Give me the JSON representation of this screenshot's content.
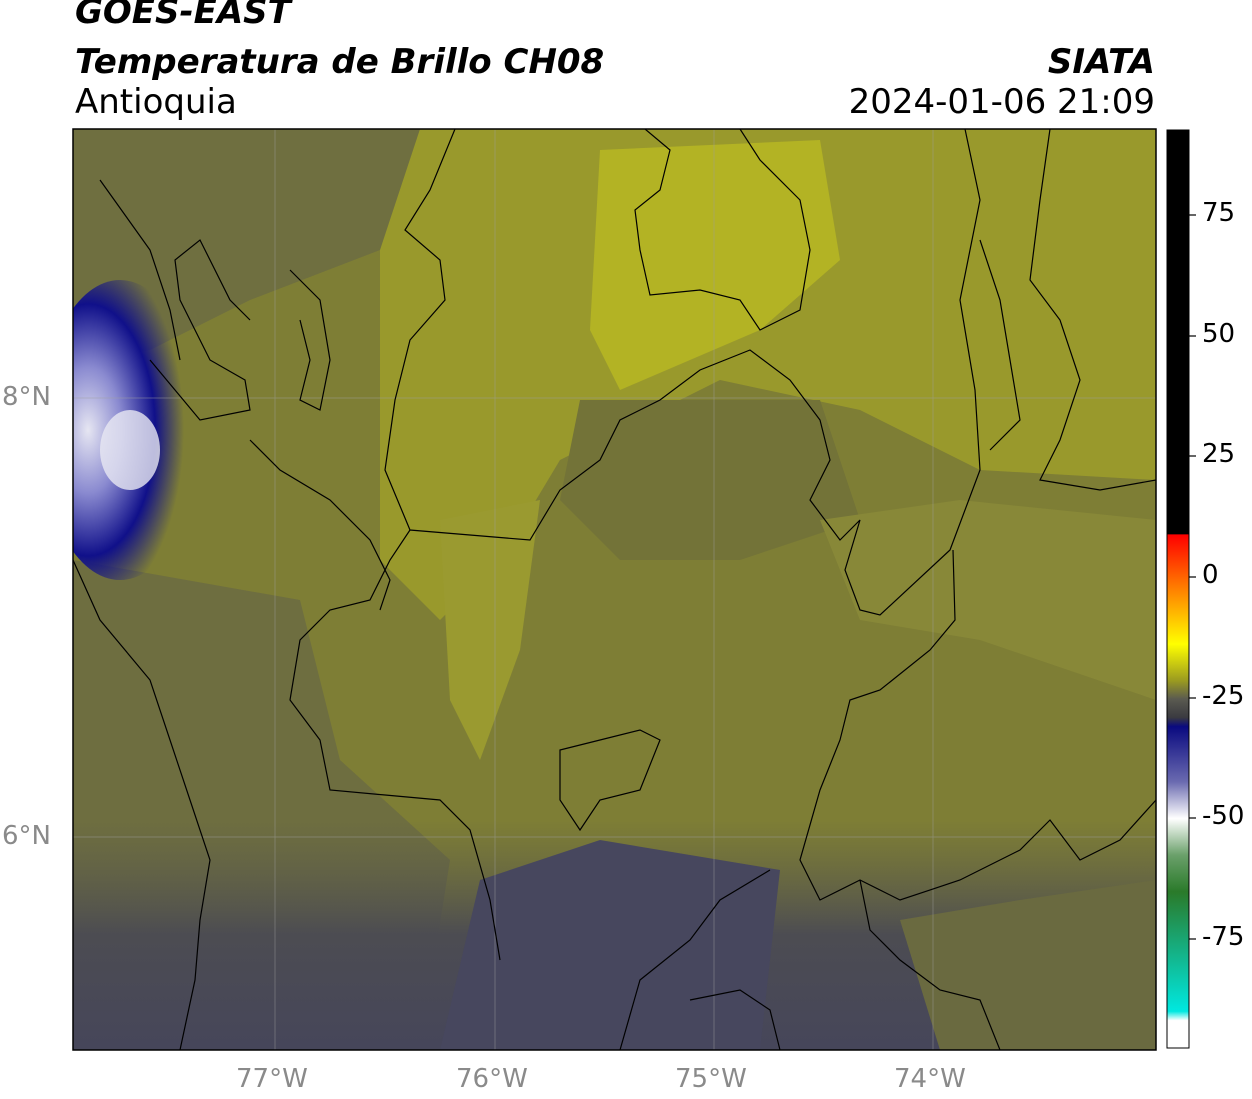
{
  "header": {
    "satellite": "GOES-EAST",
    "product": "Temperatura de Brillo CH08",
    "region": "Antioquia",
    "organization": "SIATA",
    "timestamp": "2024-01-06 21:09"
  },
  "map": {
    "longitude_ticks": [
      "77°W",
      "76°W",
      "75°W",
      "74°W"
    ],
    "latitude_ticks": [
      "8°N",
      "6°N"
    ],
    "gridlines": true
  },
  "colorbar": {
    "ticks": [
      "75",
      "50",
      "25",
      "0",
      "-25",
      "-50",
      "-75"
    ],
    "colors": {
      "black": "#000000",
      "red": "#ff0000",
      "yellow": "#ffff00",
      "olive": "#8a8a2a",
      "gray": "#4a4a4a",
      "navy": "#0a0a80",
      "white": "#ffffff",
      "green": "#2a7a2a",
      "cyan": "#00e8e0"
    }
  }
}
